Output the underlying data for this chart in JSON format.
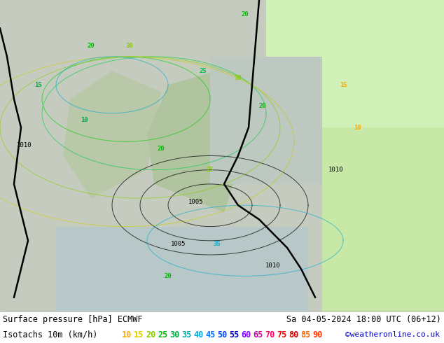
{
  "title_left": "Surface pressure [hPa] ECMWF",
  "title_right": "Sa 04-05-2024 18:00 UTC (06+12)",
  "legend_label": "Isotachs 10m (km/h)",
  "copyright": "©weatheronline.co.uk",
  "isotach_values": [
    10,
    15,
    20,
    25,
    30,
    35,
    40,
    45,
    50,
    55,
    60,
    65,
    70,
    75,
    80,
    85,
    90
  ],
  "isotach_colors": [
    "#ffaa00",
    "#ddcc00",
    "#88cc00",
    "#00bb00",
    "#00aa44",
    "#00aaaa",
    "#00aadd",
    "#0077ff",
    "#0044dd",
    "#0000cc",
    "#8800ff",
    "#cc00aa",
    "#ff0066",
    "#ff0000",
    "#cc0000",
    "#ff6600",
    "#ff3300"
  ],
  "bg_color": "#f0f0f0",
  "bottom_bar_color": "#ffffff",
  "text_color": "#000000",
  "figsize": [
    6.34,
    4.9
  ],
  "dpi": 100,
  "map_sea_color": "#c8d4c8",
  "map_land_color": "#b8c4b0",
  "map_green_color": "#a8d498",
  "map_bright_green_color": "#c8f0a8"
}
